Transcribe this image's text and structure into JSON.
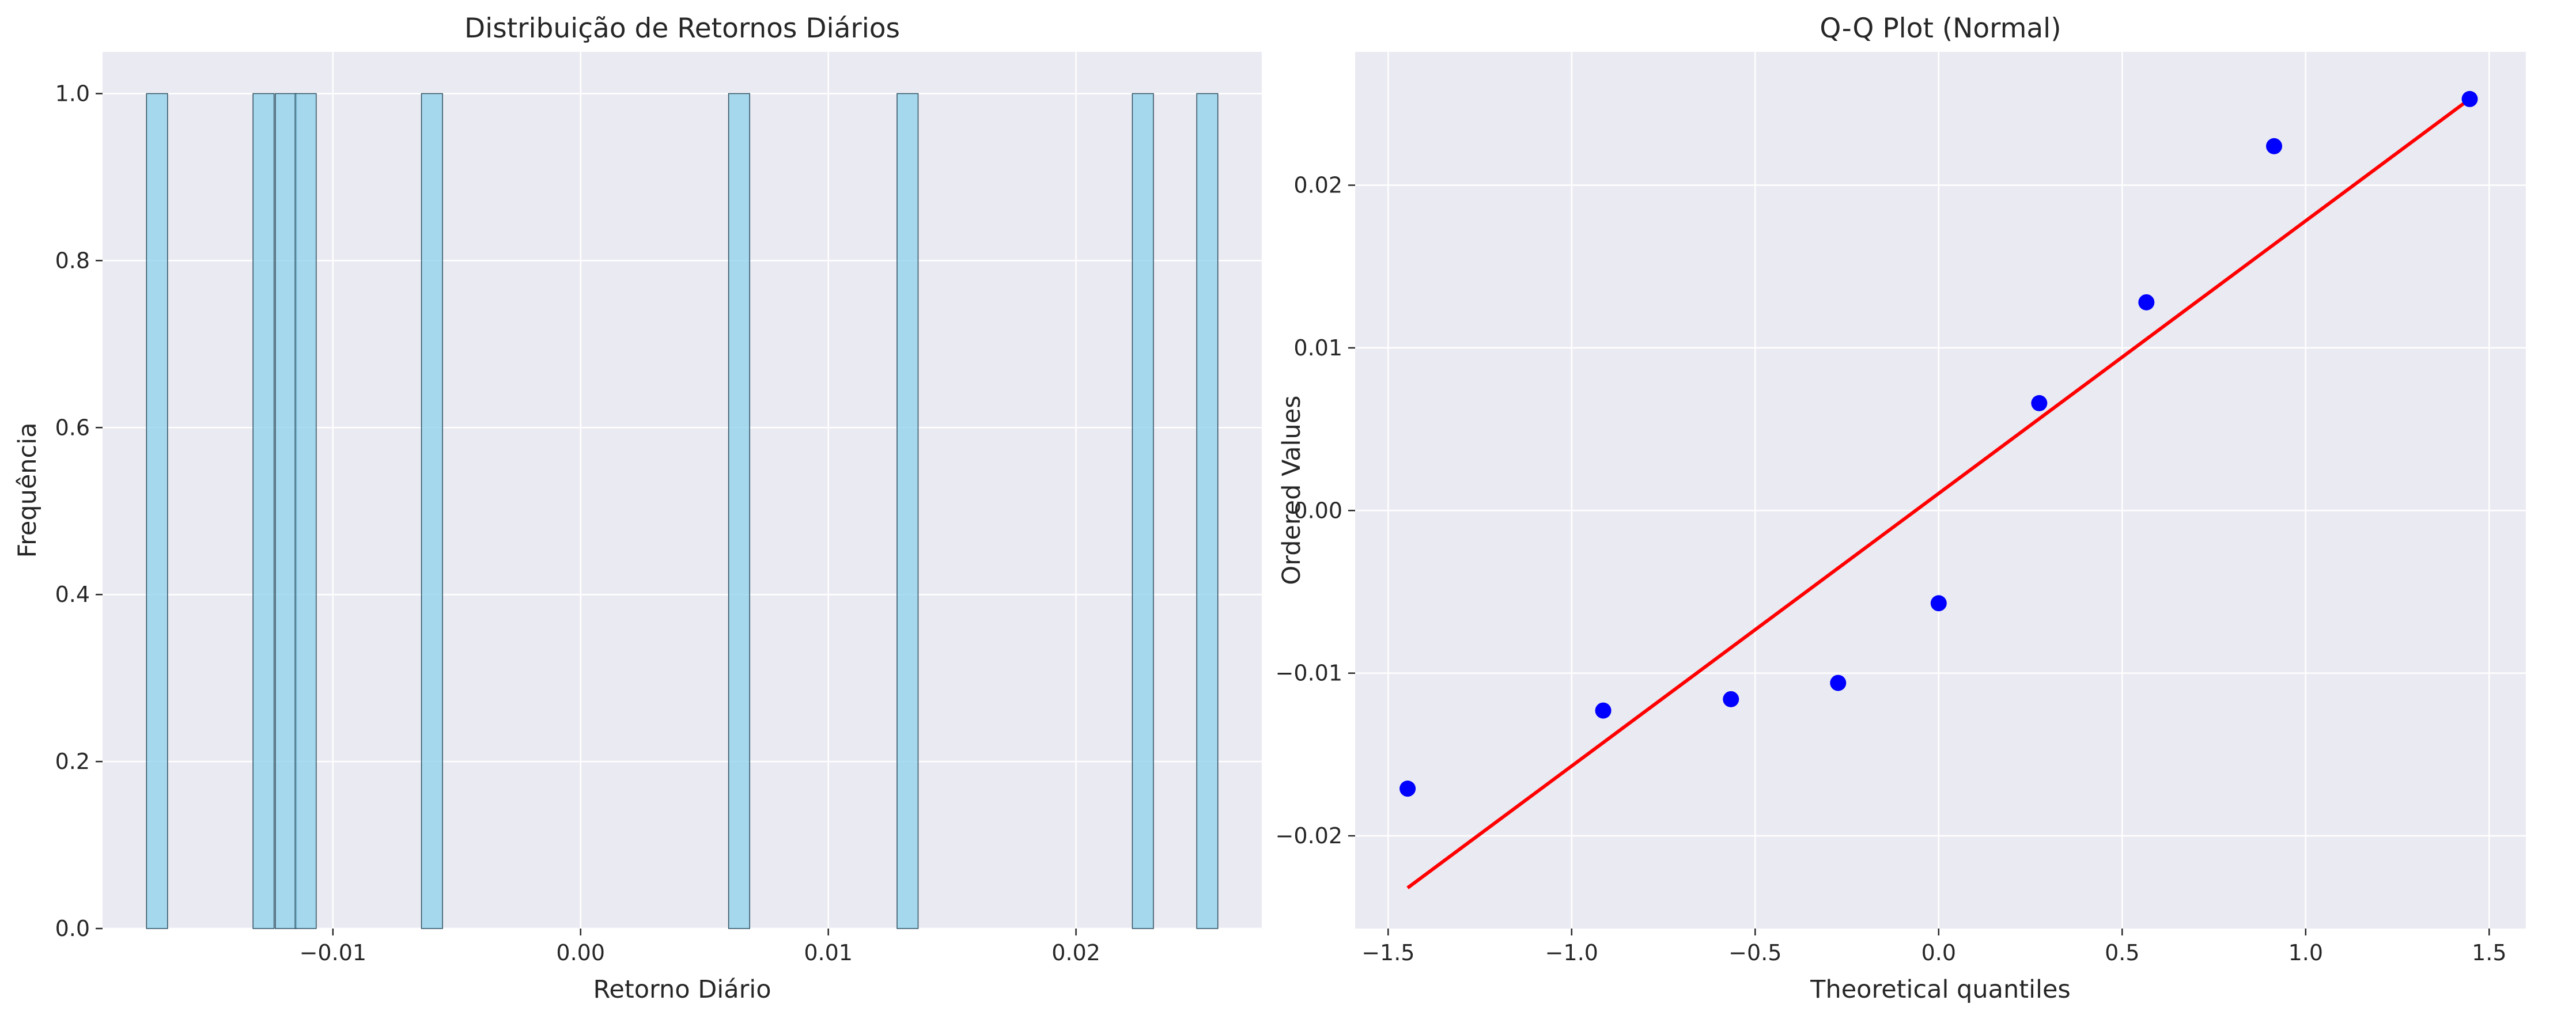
{
  "colors": {
    "background": "#ffffff",
    "axes_face": "#eaeaf2",
    "grid": "#ffffff",
    "hist_fill": "#87ceeb",
    "hist_edge": "#2f4f5f",
    "qq_points": "#0000ff",
    "qq_line": "#ff0000"
  },
  "chart_data": [
    {
      "type": "bar",
      "subtype": "histogram",
      "title": "Distribuição de Retornos Diários",
      "xlabel": "Retorno Diário",
      "ylabel": "Frequência",
      "xlim": [
        -0.0193,
        0.0275
      ],
      "ylim": [
        0,
        1.05
      ],
      "bin_width": 0.00085,
      "xticks": [
        -0.01,
        0.0,
        0.01,
        0.02
      ],
      "xtick_labels": [
        "−0.01",
        "0.00",
        "0.01",
        "0.02"
      ],
      "yticks": [
        0.0,
        0.2,
        0.4,
        0.6,
        0.8,
        1.0
      ],
      "ytick_labels": [
        "0.0",
        "0.2",
        "0.4",
        "0.6",
        "0.8",
        "1.0"
      ],
      "bins": [
        {
          "x": -0.0171,
          "count": 1
        },
        {
          "x": -0.0128,
          "count": 1
        },
        {
          "x": -0.0119,
          "count": 1
        },
        {
          "x": -0.0111,
          "count": 1
        },
        {
          "x": -0.006,
          "count": 1
        },
        {
          "x": 0.0064,
          "count": 1
        },
        {
          "x": 0.0132,
          "count": 1
        },
        {
          "x": 0.0227,
          "count": 1
        },
        {
          "x": 0.0253,
          "count": 1
        }
      ],
      "grid": true
    },
    {
      "type": "scatter",
      "title": "Q-Q Plot (Normal)",
      "xlabel": "Theoretical quantiles",
      "ylabel": "Ordered Values",
      "xlim": [
        -1.59,
        1.6
      ],
      "ylim": [
        -0.0257,
        0.0282
      ],
      "xticks": [
        -1.5,
        -1.0,
        -0.5,
        0.0,
        0.5,
        1.0,
        1.5
      ],
      "xtick_labels": [
        "−1.5",
        "−1.0",
        "−0.5",
        "0.0",
        "0.5",
        "1.0",
        "1.5"
      ],
      "yticks": [
        -0.02,
        -0.01,
        0.0,
        0.01,
        0.02
      ],
      "ytick_labels": [
        "−0.02",
        "−0.01",
        "0.00",
        "0.01",
        "0.02"
      ],
      "points": {
        "x": [
          -1.447,
          -0.914,
          -0.566,
          -0.274,
          0.0,
          0.274,
          0.566,
          0.914,
          1.447
        ],
        "y": [
          -0.0171,
          -0.0123,
          -0.0116,
          -0.0106,
          -0.0057,
          0.0066,
          0.0128,
          0.0224,
          0.0253
        ]
      },
      "fit_line": {
        "x": [
          -1.447,
          1.447
        ],
        "y": [
          -0.0232,
          0.0253
        ]
      },
      "grid": true
    }
  ]
}
